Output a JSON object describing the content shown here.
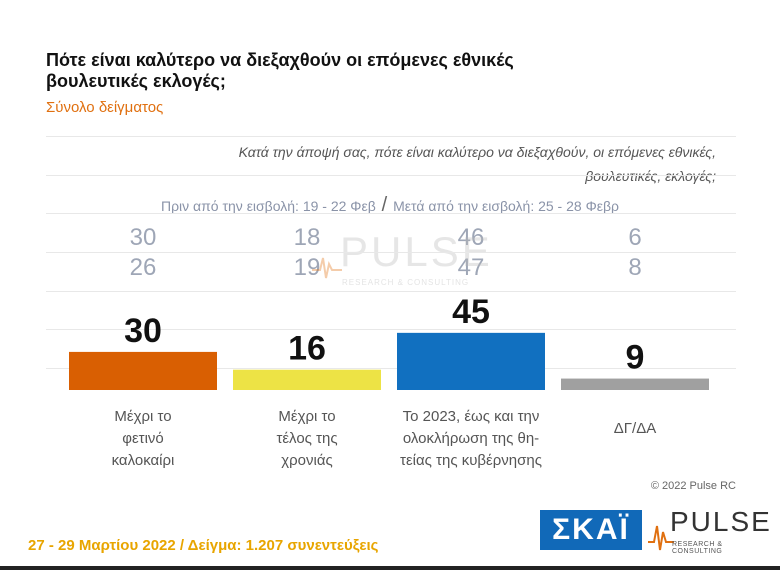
{
  "header": {
    "title": "Πότε είναι καλύτερο να διεξαχθούν οι επόμενες εθνικές βουλευτικές εκλογές;",
    "subtitle": "Σύνολο δείγματος",
    "question": "Κατά την άποψή σας, πότε είναι καλύτερο να διεξαχθούν, οι επόμενες εθνικές, βουλευτικές, εκλογές;"
  },
  "periods": {
    "before": "Πριν από την εισβολή: 19 - 22 Φεβ",
    "separator": "/",
    "after": "Μετά από την εισβολή: 25 - 28 Φεβρ"
  },
  "watermark": {
    "word": "PULSE",
    "tagline": "RESEARCH & CONSULTING"
  },
  "chart_data": {
    "type": "bar",
    "categories": [
      "Μέχρι το φετινό καλοκαίρι",
      "Μέχρι το τέλος της χρονιάς",
      "Το 2023, έως και την ολοκλήρωση της θη-τείας της κυβέρνησης",
      "ΔΓ/ΔΑ"
    ],
    "category_lines": [
      [
        "Μέχρι το",
        "φετινό",
        "καλοκαίρι"
      ],
      [
        "Μέχρι το",
        "τέλος της",
        "χρονιάς"
      ],
      [
        "Το 2023, έως και την",
        "ολοκλήρωση της θη-",
        "τείας της κυβέρνησης"
      ],
      [
        "ΔΓ/ΔΑ"
      ]
    ],
    "series": [
      {
        "values": [
          30,
          16,
          45,
          9
        ],
        "colors": [
          "#d95f02",
          "#ede345",
          "#1170c0",
          "#a0a0a0"
        ]
      }
    ],
    "previous_waves": [
      {
        "label": "Πριν από την εισβολή: 19 - 22 Φεβ",
        "values": [
          30,
          18,
          46,
          6
        ]
      },
      {
        "label": "Μετά από την εισβολή: 25 - 28 Φεβρ",
        "values": [
          26,
          19,
          47,
          8
        ]
      }
    ],
    "ylim": [
      0,
      100
    ],
    "grid": true,
    "legend": "none"
  },
  "footer": {
    "copyright": "© 2022 Pulse RC",
    "fieldwork": "27 - 29 Μαρτίου 2022 / Δείγμα: 1.207 συνεντεύξεις",
    "logo_skai": "ΣΚΑΪ",
    "logo_pulse": "PULSE",
    "logo_pulse_tagline": "RESEARCH & CONSULTING"
  }
}
